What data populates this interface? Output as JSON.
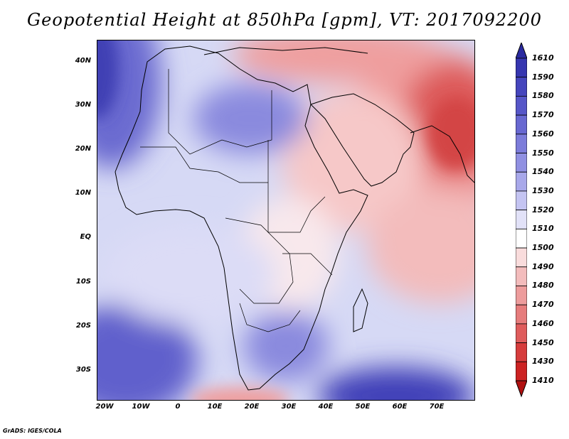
{
  "title": "Geopotential Height at 850hPa [gpm], VT: 2017092200",
  "credit": "GrADS: IGES/COLA",
  "map": {
    "variable": "Geopotential Height at 850hPa",
    "units": "gpm",
    "valid_time": "2017092200",
    "lon_range": [
      -22,
      80
    ],
    "lat_range": [
      -37,
      44
    ],
    "lat_ticks": [
      {
        "value": 40,
        "label": "40N"
      },
      {
        "value": 30,
        "label": "30N"
      },
      {
        "value": 20,
        "label": "20N"
      },
      {
        "value": 10,
        "label": "10N"
      },
      {
        "value": 0,
        "label": "EQ"
      },
      {
        "value": -10,
        "label": "10S"
      },
      {
        "value": -20,
        "label": "20S"
      },
      {
        "value": -30,
        "label": "30S"
      }
    ],
    "lon_ticks": [
      {
        "value": -20,
        "label": "20W"
      },
      {
        "value": -10,
        "label": "10W"
      },
      {
        "value": 0,
        "label": "0"
      },
      {
        "value": 10,
        "label": "10E"
      },
      {
        "value": 20,
        "label": "20E"
      },
      {
        "value": 30,
        "label": "30E"
      },
      {
        "value": 40,
        "label": "40E"
      },
      {
        "value": 50,
        "label": "50E"
      },
      {
        "value": 60,
        "label": "60E"
      },
      {
        "value": 70,
        "label": "70E"
      }
    ]
  },
  "colorbar": {
    "labels": [
      "1610",
      "1590",
      "1580",
      "1570",
      "1560",
      "1550",
      "1540",
      "1530",
      "1520",
      "1510",
      "1500",
      "1490",
      "1480",
      "1470",
      "1460",
      "1450",
      "1430",
      "1410"
    ],
    "colors": [
      "#2a2aa0",
      "#3636b0",
      "#4545bd",
      "#5656c8",
      "#6868d1",
      "#7c7cda",
      "#9090e2",
      "#a8a8ea",
      "#c4c4f2",
      "#e2e2f8",
      "#ffffff",
      "#f9dcdc",
      "#f3bcbc",
      "#ed9c9c",
      "#e67c7c",
      "#df5c5c",
      "#d63c3c",
      "#cc2222",
      "#b01010"
    ]
  }
}
